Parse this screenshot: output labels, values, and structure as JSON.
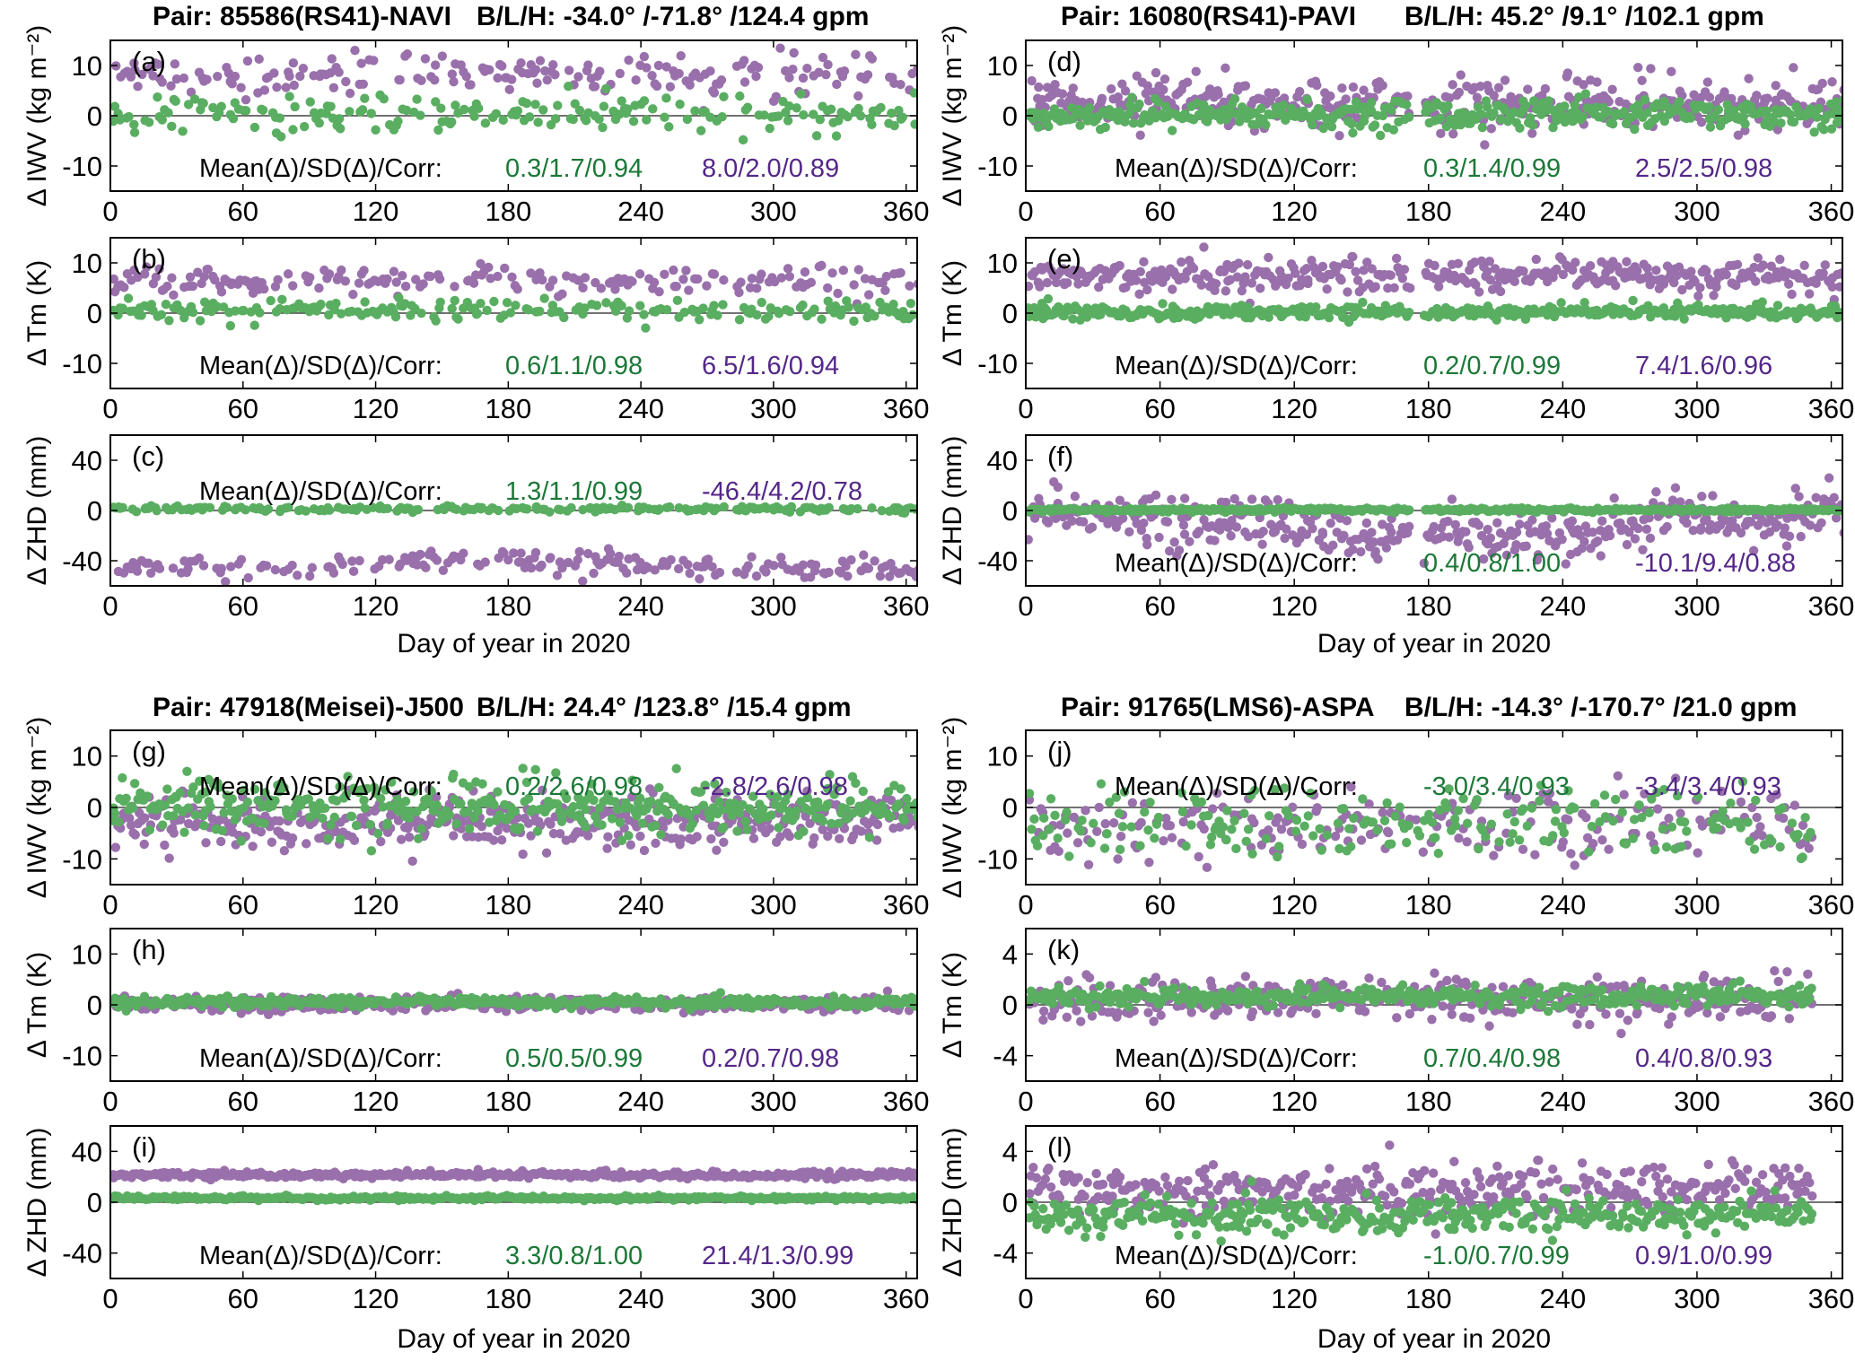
{
  "figure": {
    "colors": {
      "green": "#5aae61",
      "purple": "#9970ab",
      "green_text": "#1b7837",
      "purple_text": "#542788"
    },
    "panel_groups": [
      {
        "title_pair": "Pair: 85586(RS41)-NAVI",
        "title_blh": "B/L/H: -34.0° /-71.8° /124.4 gpm",
        "xlabel": "Day of year in 2020"
      },
      {
        "title_pair": "Pair: 16080(RS41)-PAVI",
        "title_blh": "B/L/H: 45.2° /9.1° /102.1 gpm",
        "xlabel": "Day of year in 2020"
      },
      {
        "title_pair": "Pair: 47918(Meisei)-J500",
        "title_blh": "B/L/H: 24.4° /123.8° /15.4 gpm",
        "xlabel": "Day of year in 2020"
      },
      {
        "title_pair": "Pair: 91765(LMS6)-ASPA",
        "title_blh": "B/L/H: -14.3° /-170.7° /21.0 gpm",
        "xlabel": "Day of year in 2020"
      }
    ]
  },
  "chart_data": [
    {
      "panel": "(a)",
      "type": "scatter",
      "ylabel": "Δ IWV (kg m⁻²)",
      "xlim": [
        0,
        365
      ],
      "ylim": [
        -15,
        15
      ],
      "xticks": [
        0,
        60,
        120,
        180,
        240,
        300,
        360
      ],
      "yticks": [
        10,
        0,
        -10
      ],
      "stats_label": "Mean(Δ)/SD(Δ)/Corr:",
      "stats_position": "bottom",
      "series": [
        {
          "color": "purple",
          "stats": "8.0/2.0/0.89",
          "mean": 8.0,
          "sd": 2.0
        },
        {
          "color": "green",
          "stats": "0.3/1.7/0.94",
          "mean": 0.3,
          "sd": 1.7
        }
      ],
      "gaps": [
        [
          278,
          282
        ]
      ]
    },
    {
      "panel": "(b)",
      "type": "scatter",
      "ylabel": "Δ Tm (K)",
      "xlim": [
        0,
        365
      ],
      "ylim": [
        -15,
        15
      ],
      "xticks": [
        0,
        60,
        120,
        180,
        240,
        300,
        360
      ],
      "yticks": [
        10,
        0,
        -10
      ],
      "stats_label": "Mean(Δ)/SD(Δ)/Corr:",
      "stats_position": "bottom",
      "series": [
        {
          "color": "purple",
          "stats": "6.5/1.6/0.94",
          "mean": 6.5,
          "sd": 1.6
        },
        {
          "color": "green",
          "stats": "0.6/1.1/0.98",
          "mean": 0.6,
          "sd": 1.1
        }
      ],
      "gaps": [
        [
          278,
          282
        ]
      ]
    },
    {
      "panel": "(c)",
      "type": "scatter",
      "ylabel": "Δ ZHD (mm)",
      "xlim": [
        0,
        365
      ],
      "ylim": [
        -60,
        60
      ],
      "xticks": [
        0,
        60,
        120,
        180,
        240,
        300,
        360
      ],
      "yticks": [
        40,
        0,
        -40
      ],
      "stats_label": "Mean(Δ)/SD(Δ)/Corr:",
      "stats_position": "top",
      "series": [
        {
          "color": "purple",
          "stats": "-46.4/4.2/0.78",
          "mean": -46.4,
          "sd": 4.2
        },
        {
          "color": "green",
          "stats": "1.3/1.1/0.99",
          "mean": 1.3,
          "sd": 1.1
        }
      ],
      "gaps": [
        [
          278,
          282
        ]
      ]
    },
    {
      "panel": "(d)",
      "type": "scatter",
      "ylabel": "Δ IWV (kg m⁻²)",
      "xlim": [
        0,
        365
      ],
      "ylim": [
        -15,
        15
      ],
      "xticks": [
        0,
        60,
        120,
        180,
        240,
        300,
        360
      ],
      "yticks": [
        10,
        0,
        -10
      ],
      "stats_label": "Mean(Δ)/SD(Δ)/Corr:",
      "stats_position": "bottom",
      "series": [
        {
          "color": "purple",
          "stats": "2.5/2.5/0.98",
          "mean": 2.5,
          "sd": 2.5
        },
        {
          "color": "green",
          "stats": "0.3/1.4/0.99",
          "mean": 0.3,
          "sd": 1.4
        }
      ],
      "gaps": [
        [
          172,
          177
        ]
      ]
    },
    {
      "panel": "(e)",
      "type": "scatter",
      "ylabel": "Δ Tm (K)",
      "xlim": [
        0,
        365
      ],
      "ylim": [
        -15,
        15
      ],
      "xticks": [
        0,
        60,
        120,
        180,
        240,
        300,
        360
      ],
      "yticks": [
        10,
        0,
        -10
      ],
      "stats_label": "Mean(Δ)/SD(Δ)/Corr:",
      "stats_position": "bottom",
      "series": [
        {
          "color": "purple",
          "stats": "7.4/1.6/0.96",
          "mean": 7.4,
          "sd": 1.6
        },
        {
          "color": "green",
          "stats": "0.2/0.7/0.99",
          "mean": 0.2,
          "sd": 0.7
        }
      ],
      "gaps": [
        [
          172,
          177
        ]
      ]
    },
    {
      "panel": "(f)",
      "type": "scatter",
      "ylabel": "Δ ZHD (mm)",
      "xlim": [
        0,
        365
      ],
      "ylim": [
        -60,
        60
      ],
      "xticks": [
        0,
        60,
        120,
        180,
        240,
        300,
        360
      ],
      "yticks": [
        40,
        0,
        -40
      ],
      "stats_label": "Mean(Δ)/SD(Δ)/Corr:",
      "stats_position": "bottom",
      "series": [
        {
          "color": "purple",
          "stats": "-10.1/9.4/0.88",
          "mean": -10.1,
          "sd": 9.4
        },
        {
          "color": "green",
          "stats": "0.4/0.8/1.00",
          "mean": 0.4,
          "sd": 0.8
        }
      ],
      "gaps": [
        [
          172,
          177
        ]
      ]
    },
    {
      "panel": "(g)",
      "type": "scatter",
      "ylabel": "Δ IWV (kg m⁻²)",
      "xlim": [
        0,
        365
      ],
      "ylim": [
        -15,
        15
      ],
      "xticks": [
        0,
        60,
        120,
        180,
        240,
        300,
        360
      ],
      "yticks": [
        10,
        0,
        -10
      ],
      "stats_label": "Mean(Δ)/SD(Δ)/Corr:",
      "stats_position": "top",
      "series": [
        {
          "color": "purple",
          "stats": "-2.8/2.6/0.98",
          "mean": -2.8,
          "sd": 2.6
        },
        {
          "color": "green",
          "stats": "0.2/2.6/0.98",
          "mean": 0.2,
          "sd": 2.6
        }
      ],
      "gaps": []
    },
    {
      "panel": "(h)",
      "type": "scatter",
      "ylabel": "Δ Tm (K)",
      "xlim": [
        0,
        365
      ],
      "ylim": [
        -15,
        15
      ],
      "xticks": [
        0,
        60,
        120,
        180,
        240,
        300,
        360
      ],
      "yticks": [
        10,
        0,
        -10
      ],
      "stats_label": "Mean(Δ)/SD(Δ)/Corr:",
      "stats_position": "bottom",
      "series": [
        {
          "color": "purple",
          "stats": "0.2/0.7/0.98",
          "mean": 0.2,
          "sd": 0.7
        },
        {
          "color": "green",
          "stats": "0.5/0.5/0.99",
          "mean": 0.5,
          "sd": 0.5
        }
      ],
      "gaps": []
    },
    {
      "panel": "(i)",
      "type": "scatter",
      "ylabel": "Δ ZHD (mm)",
      "xlim": [
        0,
        365
      ],
      "ylim": [
        -60,
        60
      ],
      "xticks": [
        0,
        60,
        120,
        180,
        240,
        300,
        360
      ],
      "yticks": [
        40,
        0,
        -40
      ],
      "stats_label": "Mean(Δ)/SD(Δ)/Corr:",
      "stats_position": "bottom",
      "series": [
        {
          "color": "purple",
          "stats": "21.4/1.3/0.99",
          "mean": 21.4,
          "sd": 1.3
        },
        {
          "color": "green",
          "stats": "3.3/0.8/1.00",
          "mean": 3.3,
          "sd": 0.8
        }
      ],
      "gaps": []
    },
    {
      "panel": "(j)",
      "type": "scatter",
      "ylabel": "Δ IWV (kg m⁻²)",
      "xlim": [
        0,
        365
      ],
      "ylim": [
        -15,
        15
      ],
      "xticks": [
        0,
        60,
        120,
        180,
        240,
        300,
        360
      ],
      "yticks": [
        10,
        0,
        -10
      ],
      "stats_label": "Mean(Δ)/SD(Δ)/Corr:",
      "stats_position": "top",
      "series": [
        {
          "color": "purple",
          "stats": "-3.4/3.4/0.93",
          "mean": -3.4,
          "sd": 3.4
        },
        {
          "color": "green",
          "stats": "-3.0/3.4/0.93",
          "mean": -3.0,
          "sd": 3.4
        }
      ],
      "gaps": [
        [
          352,
          365
        ]
      ]
    },
    {
      "panel": "(k)",
      "type": "scatter",
      "ylabel": "Δ Tm (K)",
      "xlim": [
        0,
        365
      ],
      "ylim": [
        -6,
        6
      ],
      "xticks": [
        0,
        60,
        120,
        180,
        240,
        300,
        360
      ],
      "yticks": [
        4,
        0,
        -4
      ],
      "stats_label": "Mean(Δ)/SD(Δ)/Corr:",
      "stats_position": "bottom",
      "series": [
        {
          "color": "purple",
          "stats": "0.4/0.8/0.93",
          "mean": 0.4,
          "sd": 0.8
        },
        {
          "color": "green",
          "stats": "0.7/0.4/0.98",
          "mean": 0.7,
          "sd": 0.4
        }
      ],
      "gaps": [
        [
          352,
          365
        ]
      ]
    },
    {
      "panel": "(l)",
      "type": "scatter",
      "ylabel": "Δ ZHD (mm)",
      "xlim": [
        0,
        365
      ],
      "ylim": [
        -6,
        6
      ],
      "xticks": [
        0,
        60,
        120,
        180,
        240,
        300,
        360
      ],
      "yticks": [
        4,
        0,
        -4
      ],
      "stats_label": "Mean(Δ)/SD(Δ)/Corr:",
      "stats_position": "bottom",
      "series": [
        {
          "color": "purple",
          "stats": "0.9/1.0/0.99",
          "mean": 0.9,
          "sd": 1.0
        },
        {
          "color": "green",
          "stats": "-1.0/0.7/0.99",
          "mean": -1.0,
          "sd": 0.7
        }
      ],
      "gaps": [
        [
          352,
          365
        ]
      ]
    }
  ]
}
